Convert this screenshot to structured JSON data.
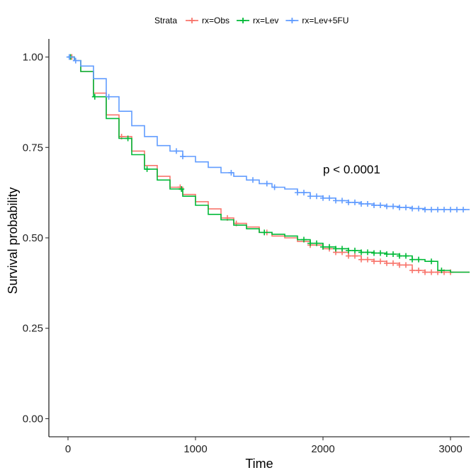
{
  "chart_data": {
    "type": "line",
    "subtype": "kaplan-meier survival curve",
    "xlabel": "Time",
    "ylabel": "Survival probability",
    "xlim": [
      -150,
      3150
    ],
    "ylim": [
      -0.05,
      1.05
    ],
    "x_ticks": [
      0,
      1000,
      2000,
      3000
    ],
    "y_ticks": [
      0.0,
      0.25,
      0.5,
      0.75,
      1.0
    ],
    "y_tick_labels": [
      "0.00",
      "0.25",
      "0.50",
      "0.75",
      "1.00"
    ],
    "grid": false,
    "legend": {
      "title": "Strata",
      "position": "top"
    },
    "annotation": {
      "text": "p < 0.0001",
      "x": 2000,
      "y": 0.69
    },
    "series": [
      {
        "name": "rx=Obs",
        "color": "#F8766D",
        "x": [
          0,
          50,
          100,
          200,
          300,
          400,
          500,
          600,
          700,
          800,
          900,
          1000,
          1100,
          1200,
          1300,
          1400,
          1500,
          1600,
          1700,
          1800,
          1900,
          2000,
          2100,
          2200,
          2300,
          2400,
          2500,
          2600,
          2700,
          2800,
          2900,
          3000,
          3150
        ],
        "y": [
          1.0,
          0.99,
          0.96,
          0.9,
          0.84,
          0.78,
          0.74,
          0.7,
          0.67,
          0.64,
          0.62,
          0.6,
          0.58,
          0.555,
          0.54,
          0.53,
          0.515,
          0.505,
          0.5,
          0.49,
          0.48,
          0.47,
          0.46,
          0.45,
          0.44,
          0.435,
          0.43,
          0.425,
          0.41,
          0.405,
          0.405,
          0.405,
          0.405
        ],
        "censor_x": [
          30,
          420,
          880,
          1250,
          1320,
          1560,
          1900,
          2050,
          2100,
          2150,
          2200,
          2250,
          2300,
          2350,
          2400,
          2450,
          2500,
          2550,
          2600,
          2650,
          2700,
          2750,
          2800,
          2850,
          2900,
          2950,
          3000
        ]
      },
      {
        "name": "rx=Lev",
        "color": "#00BA38",
        "x": [
          0,
          50,
          100,
          200,
          300,
          400,
          500,
          600,
          700,
          800,
          900,
          1000,
          1100,
          1200,
          1300,
          1400,
          1500,
          1600,
          1700,
          1800,
          1900,
          2000,
          2100,
          2200,
          2300,
          2400,
          2500,
          2600,
          2700,
          2800,
          2900,
          3000,
          3150
        ],
        "y": [
          1.0,
          0.99,
          0.96,
          0.89,
          0.83,
          0.775,
          0.73,
          0.69,
          0.66,
          0.635,
          0.615,
          0.59,
          0.565,
          0.55,
          0.535,
          0.525,
          0.515,
          0.51,
          0.505,
          0.495,
          0.485,
          0.475,
          0.47,
          0.465,
          0.46,
          0.458,
          0.455,
          0.45,
          0.44,
          0.435,
          0.41,
          0.405,
          0.405
        ],
        "censor_x": [
          20,
          210,
          470,
          620,
          890,
          1540,
          1850,
          1900,
          1950,
          2000,
          2050,
          2100,
          2150,
          2200,
          2250,
          2300,
          2350,
          2400,
          2450,
          2500,
          2550,
          2600,
          2650,
          2700,
          2750,
          2850,
          2930
        ]
      },
      {
        "name": "rx=Lev+5FU",
        "color": "#619CFF",
        "x": [
          0,
          50,
          100,
          200,
          300,
          400,
          500,
          600,
          700,
          800,
          900,
          1000,
          1100,
          1200,
          1300,
          1400,
          1500,
          1600,
          1700,
          1800,
          1900,
          2000,
          2100,
          2200,
          2300,
          2400,
          2500,
          2600,
          2700,
          2800,
          2900,
          3000,
          3150
        ],
        "y": [
          1.0,
          0.99,
          0.975,
          0.94,
          0.89,
          0.85,
          0.81,
          0.78,
          0.755,
          0.74,
          0.725,
          0.71,
          0.695,
          0.68,
          0.67,
          0.66,
          0.65,
          0.64,
          0.635,
          0.625,
          0.615,
          0.61,
          0.603,
          0.598,
          0.594,
          0.59,
          0.587,
          0.584,
          0.581,
          0.578,
          0.578,
          0.578,
          0.578
        ],
        "censor_x": [
          10,
          60,
          320,
          850,
          900,
          1280,
          1450,
          1560,
          1620,
          1800,
          1850,
          1900,
          1950,
          2000,
          2050,
          2100,
          2150,
          2200,
          2250,
          2300,
          2350,
          2400,
          2450,
          2500,
          2550,
          2600,
          2650,
          2700,
          2750,
          2800,
          2850,
          2900,
          2950,
          3000,
          3050,
          3100
        ]
      }
    ]
  }
}
